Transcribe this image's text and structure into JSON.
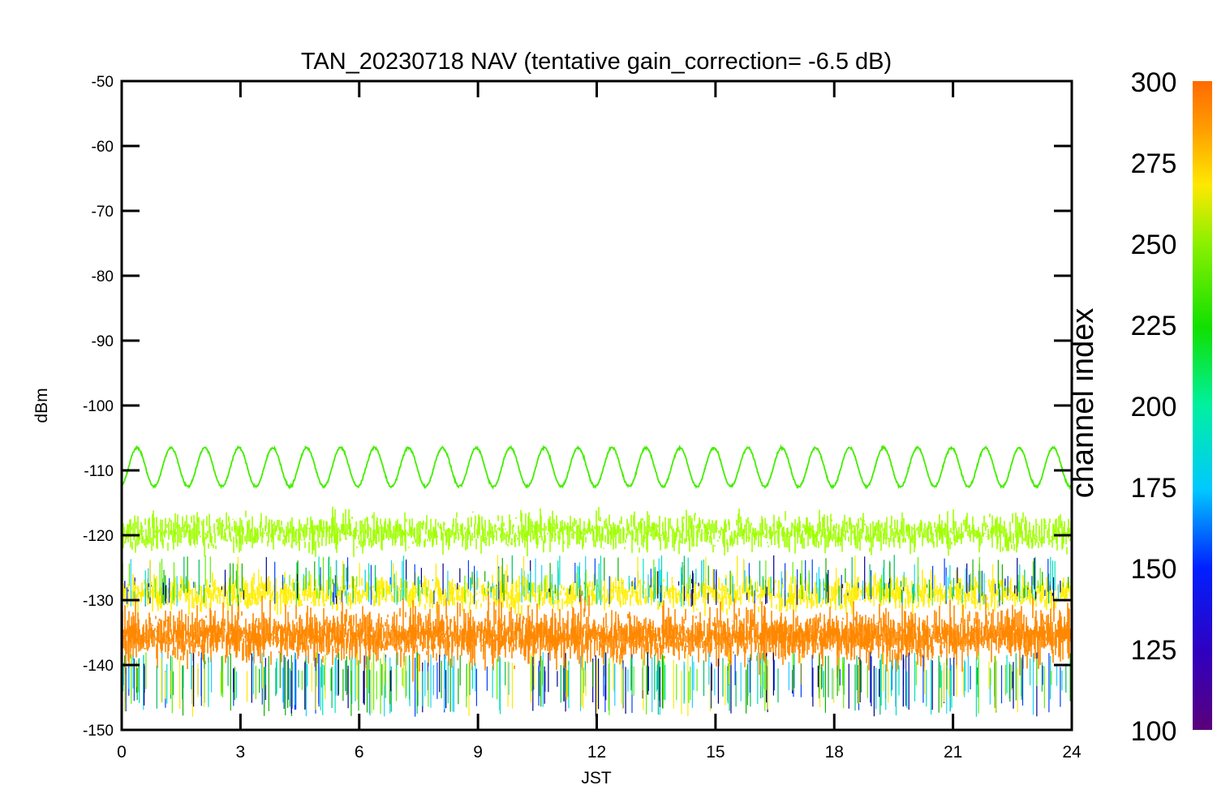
{
  "chart_data": {
    "type": "line",
    "title": "TAN_20230718 NAV (tentative gain_correction= -6.5 dB)",
    "xlabel": "JST",
    "ylabel": "dBm",
    "xlim": [
      0,
      24
    ],
    "ylim": [
      -150,
      -50
    ],
    "x_ticks": [
      "0",
      "3",
      "6",
      "9",
      "12",
      "15",
      "18",
      "21",
      "24"
    ],
    "y_ticks": [
      "-50",
      "-60",
      "-70",
      "-80",
      "-90",
      "-100",
      "-110",
      "-120",
      "-130",
      "-140",
      "-150"
    ],
    "colorbar": {
      "label": "channel index",
      "range": [
        100,
        300
      ],
      "ticks": [
        "300",
        "275",
        "250",
        "225",
        "200",
        "175",
        "150",
        "125",
        "100"
      ],
      "colormap": "rainbow"
    },
    "series": [
      {
        "channel": 245,
        "kind": "sinusoid",
        "mean": -109.5,
        "amplitude": 3,
        "cycles": 28,
        "noise": 0.3,
        "color": "#44ee00"
      },
      {
        "channel": 260,
        "kind": "noise-band",
        "low": -125,
        "high": -114,
        "center": -119.5,
        "color": "#a0ff00"
      },
      {
        "channel": 270,
        "kind": "noise-band",
        "low": -133,
        "high": -123,
        "center": -129,
        "color": "#ffee00"
      },
      {
        "channel": 285,
        "kind": "noise-band",
        "low": -143,
        "high": -125,
        "center": -135.5,
        "color": "#ff8800"
      },
      {
        "channel": "100-300",
        "kind": "spikes",
        "low": -149,
        "high": -117,
        "center": -136
      }
    ]
  }
}
